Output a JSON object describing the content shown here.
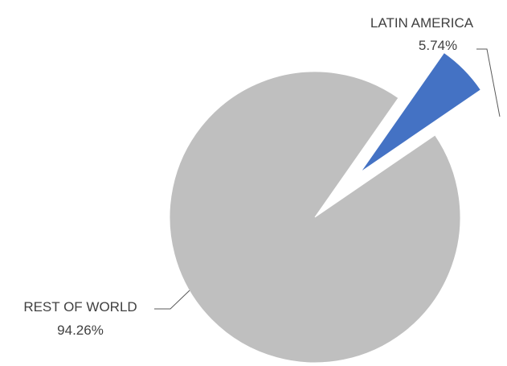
{
  "chart_data": {
    "type": "pie",
    "exploded": [
      "LATIN AMERICA"
    ],
    "slices": [
      {
        "label": "LATIN AMERICA",
        "value": 5.74,
        "value_text": "5.74%",
        "color": "#4472C4"
      },
      {
        "label": "REST OF WORLD",
        "value": 94.26,
        "value_text": "94.26%",
        "color": "#BFBFBF"
      }
    ]
  }
}
